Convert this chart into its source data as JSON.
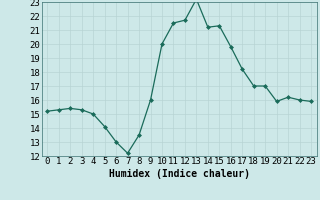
{
  "x": [
    0,
    1,
    2,
    3,
    4,
    5,
    6,
    7,
    8,
    9,
    10,
    11,
    12,
    13,
    14,
    15,
    16,
    17,
    18,
    19,
    20,
    21,
    22,
    23
  ],
  "y": [
    15.2,
    15.3,
    15.4,
    15.3,
    15.0,
    14.1,
    13.0,
    12.2,
    13.5,
    16.0,
    20.0,
    21.5,
    21.7,
    23.2,
    21.2,
    21.3,
    19.8,
    18.2,
    17.0,
    17.0,
    15.9,
    16.2,
    16.0,
    15.9
  ],
  "xlabel": "Humidex (Indice chaleur)",
  "xlim": [
    -0.5,
    23.5
  ],
  "ylim": [
    12,
    23
  ],
  "yticks": [
    12,
    13,
    14,
    15,
    16,
    17,
    18,
    19,
    20,
    21,
    22,
    23
  ],
  "xticks": [
    0,
    1,
    2,
    3,
    4,
    5,
    6,
    7,
    8,
    9,
    10,
    11,
    12,
    13,
    14,
    15,
    16,
    17,
    18,
    19,
    20,
    21,
    22,
    23
  ],
  "line_color": "#1a6b5a",
  "marker_color": "#1a6b5a",
  "bg_color": "#cde8e8",
  "grid_color": "#b8d4d4",
  "xlabel_fontsize": 7,
  "tick_fontsize": 6.5
}
